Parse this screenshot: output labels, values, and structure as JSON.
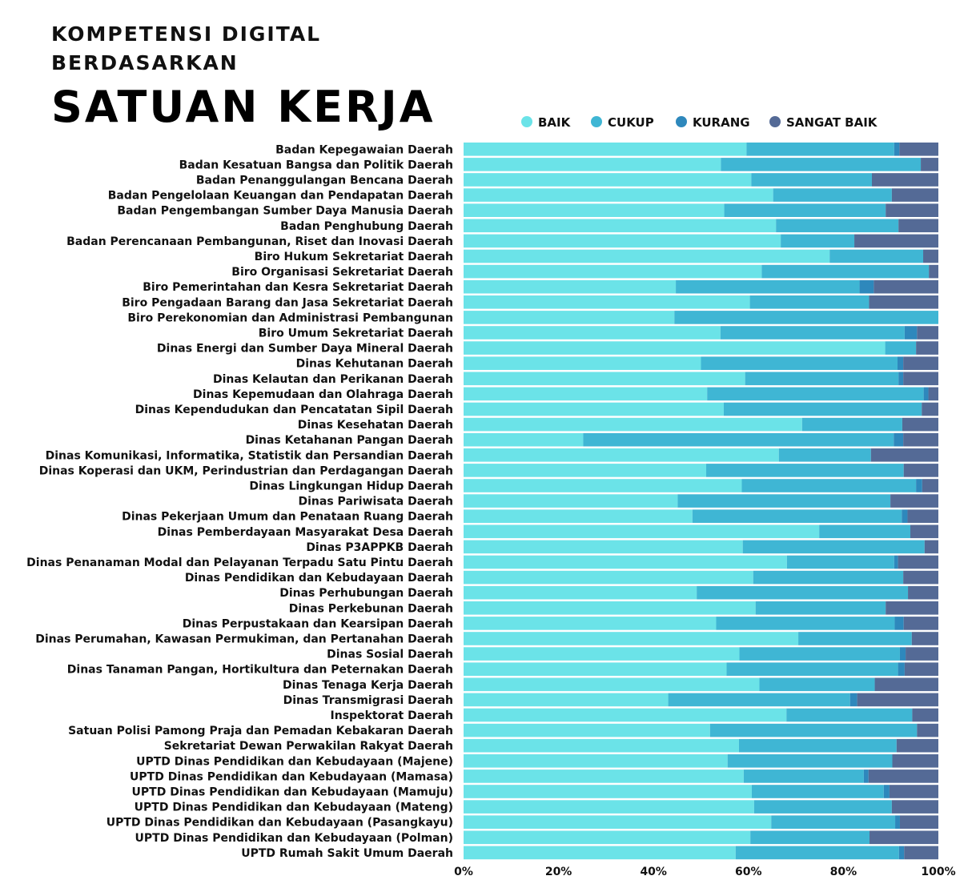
{
  "header": {
    "line1": "KOMPETENSI DIGITAL",
    "line2": "BERDASARKAN",
    "line3": "SATUAN KERJA"
  },
  "chart_data": {
    "type": "bar",
    "orientation": "horizontal",
    "stacked": true,
    "normalized": true,
    "title": "KOMPETENSI DIGITAL BERDASARKAN SATUAN KERJA",
    "xlabel": "",
    "ylabel": "",
    "xlim": [
      0,
      100
    ],
    "x_ticks": [
      "0%",
      "20%",
      "40%",
      "60%",
      "80%",
      "100%"
    ],
    "legend_position": "top",
    "grid": false,
    "categories": [
      "Badan Kepegawaian Daerah",
      "Badan Kesatuan Bangsa dan Politik Daerah",
      "Badan Penanggulangan Bencana Daerah",
      "Badan Pengelolaan Keuangan dan Pendapatan Daerah",
      "Badan Pengembangan Sumber Daya Manusia Daerah",
      "Badan Penghubung Daerah",
      "Badan Perencanaan Pembangunan, Riset dan Inovasi Daerah",
      "Biro Hukum Sekretariat Daerah",
      "Biro Organisasi Sekretariat Daerah",
      "Biro Pemerintahan dan Kesra Sekretariat Daerah",
      "Biro Pengadaan Barang dan Jasa Sekretariat Daerah",
      "Biro Perekonomian dan Administrasi Pembangunan",
      "Biro Umum Sekretariat Daerah",
      "Dinas Energi dan Sumber Daya Mineral Daerah",
      "Dinas Kehutanan Daerah",
      "Dinas Kelautan dan Perikanan Daerah",
      "Dinas Kepemudaan dan Olahraga Daerah",
      "Dinas Kependudukan dan Pencatatan Sipil Daerah",
      "Dinas Kesehatan Daerah",
      "Dinas Ketahanan Pangan Daerah",
      "Dinas Komunikasi, Informatika, Statistik dan Persandian Daerah",
      "Dinas Koperasi dan UKM, Perindustrian dan Perdagangan Daerah",
      "Dinas Lingkungan Hidup Daerah",
      "Dinas Pariwisata Daerah",
      "Dinas Pekerjaan Umum dan Penataan Ruang Daerah",
      "Dinas Pemberdayaan Masyarakat Desa Daerah",
      "Dinas P3APPKB Daerah",
      "Dinas Penanaman Modal dan Pelayanan Terpadu Satu Pintu Daerah",
      "Dinas Pendidikan dan Kebudayaan Daerah",
      "Dinas Perhubungan Daerah",
      "Dinas Perkebunan Daerah",
      "Dinas Perpustakaan dan Kearsipan Daerah",
      "Dinas Perumahan, Kawasan Permukiman, dan Pertanahan Daerah",
      "Dinas Sosial Daerah",
      "Dinas Tanaman Pangan, Hortikultura dan Peternakan Daerah",
      "Dinas Tenaga Kerja Daerah",
      "Dinas Transmigrasi Daerah",
      "Inspektorat Daerah",
      "Satuan Polisi Pamong Praja dan Pemadan Kebakaran Daerah",
      "Sekretariat Dewan Perwakilan Rakyat Daerah",
      "UPTD Dinas Pendidikan dan Kebudayaan (Majene)",
      "UPTD Dinas Pendidikan dan Kebudayaan (Mamasa)",
      "UPTD Dinas Pendidikan dan Kebudayaan (Mamuju)",
      "UPTD Dinas Pendidikan dan Kebudayaan (Mateng)",
      "UPTD Dinas Pendidikan dan Kebudayaan (Pasangkayu)",
      "UPTD Dinas Pendidikan dan Kebudayaan (Polman)",
      "UPTD Rumah Sakit Umum Daerah"
    ],
    "series": [
      {
        "name": "BAIK",
        "color": "#6be3e8",
        "values": [
          59.6,
          54.2,
          60.6,
          65.2,
          54.9,
          65.8,
          66.8,
          77.1,
          62.8,
          44.7,
          60.3,
          44.4,
          54.1,
          88.8,
          50.0,
          59.3,
          51.3,
          54.8,
          71.3,
          25.2,
          66.4,
          51.1,
          58.6,
          45.1,
          48.2,
          74.9,
          58.8,
          68.1,
          61.0,
          49.1,
          61.5,
          53.2,
          70.5,
          58.1,
          55.4,
          62.3,
          43.1,
          68.0,
          51.9,
          58.0,
          55.6,
          59.0,
          60.7,
          61.2,
          64.8,
          60.4,
          57.3
        ]
      },
      {
        "name": "CUKUP",
        "color": "#3fb6d4",
        "values": [
          31.1,
          42.1,
          25.4,
          25.0,
          34.0,
          25.8,
          15.5,
          19.7,
          35.2,
          38.7,
          25.1,
          55.6,
          38.8,
          6.5,
          41.4,
          32.3,
          45.6,
          41.7,
          21.1,
          65.4,
          19.4,
          41.6,
          36.7,
          44.8,
          44.1,
          19.2,
          38.3,
          22.6,
          31.6,
          44.5,
          27.4,
          37.6,
          23.9,
          33.8,
          36.1,
          24.3,
          38.3,
          26.5,
          43.6,
          33.2,
          34.7,
          25.3,
          27.8,
          29.0,
          26.1,
          25.1,
          34.4
        ]
      },
      {
        "name": "KURANG",
        "color": "#2e88bc",
        "values": [
          1.1,
          0.0,
          0.0,
          0.0,
          0.0,
          0.0,
          0.0,
          0.0,
          0.0,
          3.0,
          0.0,
          0.0,
          2.6,
          0.0,
          1.2,
          1.0,
          1.0,
          0.0,
          0.0,
          2.0,
          0.0,
          0.0,
          1.3,
          0.0,
          1.2,
          0.0,
          0.0,
          0.8,
          0.0,
          0.0,
          0.0,
          1.9,
          0.0,
          1.2,
          1.4,
          0.0,
          1.5,
          0.0,
          0.0,
          0.0,
          0.0,
          1.0,
          1.2,
          0.0,
          1.0,
          0.0,
          1.1
        ]
      },
      {
        "name": "SANGAT BAIK",
        "color": "#546a96",
        "values": [
          8.2,
          3.7,
          14.0,
          9.8,
          11.1,
          8.4,
          17.7,
          3.2,
          2.0,
          13.6,
          14.6,
          0.0,
          4.5,
          4.7,
          7.4,
          7.4,
          2.1,
          3.5,
          7.6,
          7.4,
          14.2,
          7.3,
          3.4,
          10.1,
          6.5,
          5.9,
          2.9,
          8.5,
          7.4,
          6.4,
          11.1,
          7.3,
          5.6,
          6.9,
          7.1,
          13.4,
          17.1,
          5.5,
          4.5,
          8.8,
          9.7,
          14.7,
          10.3,
          9.8,
          8.1,
          14.5,
          7.2
        ]
      }
    ]
  }
}
